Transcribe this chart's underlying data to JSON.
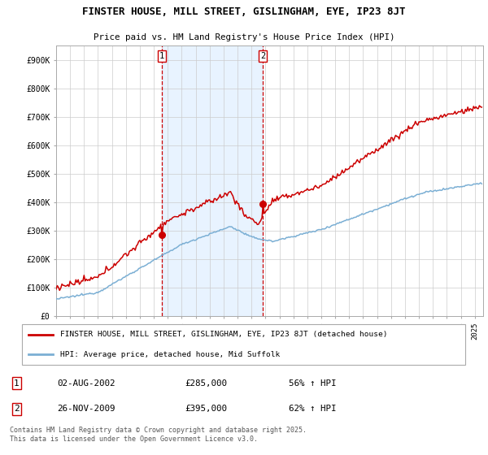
{
  "title": "FINSTER HOUSE, MILL STREET, GISLINGHAM, EYE, IP23 8JT",
  "subtitle": "Price paid vs. HM Land Registry's House Price Index (HPI)",
  "legend_line1": "FINSTER HOUSE, MILL STREET, GISLINGHAM, EYE, IP23 8JT (detached house)",
  "legend_line2": "HPI: Average price, detached house, Mid Suffolk",
  "purchase1_date": "02-AUG-2002",
  "purchase1_price": 285000,
  "purchase1_label": "56% ↑ HPI",
  "purchase2_date": "26-NOV-2009",
  "purchase2_price": 395000,
  "purchase2_label": "62% ↑ HPI",
  "footer": "Contains HM Land Registry data © Crown copyright and database right 2025.\nThis data is licensed under the Open Government Licence v3.0.",
  "house_color": "#cc0000",
  "hpi_color": "#7bafd4",
  "background_color": "#ffffff",
  "plot_bg_color": "#ffffff",
  "vline_color": "#cc0000",
  "shade_color": "#ddeeff",
  "ylim": [
    0,
    950000
  ],
  "yticks": [
    0,
    100000,
    200000,
    300000,
    400000,
    500000,
    600000,
    700000,
    800000,
    900000
  ],
  "year_start": 1995,
  "year_end": 2025
}
